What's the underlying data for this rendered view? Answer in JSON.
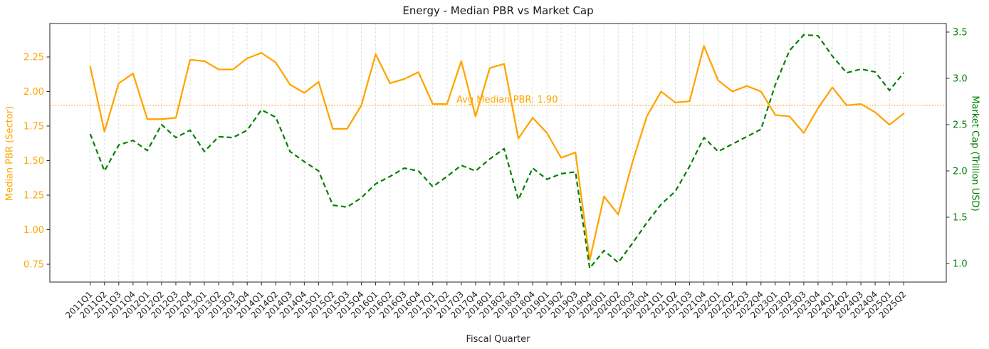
{
  "chart": {
    "title": "Energy - Median PBR vs Market Cap",
    "xlabel": "Fiscal Quarter",
    "ylabel_left": "Median PBR (Sector)",
    "ylabel_right": "Market Cap (Trillion USD)",
    "colors": {
      "pbr_line": "#FFA500",
      "mcap_line": "#008000",
      "avg_line": "#FFA500",
      "grid": "#dcdcdc",
      "spine": "#262626",
      "x_tick_text": "#262626"
    }
  },
  "chart_data": {
    "type": "line",
    "title": "Energy - Median PBR vs Market Cap",
    "xlabel": "Fiscal Quarter",
    "ylabel_left": "Median PBR (Sector)",
    "ylabel_right": "Market Cap (Trillion USD)",
    "legend": "none",
    "grid": "vertical-dashed",
    "categories": [
      "2011Q1",
      "2011Q2",
      "2011Q3",
      "2011Q4",
      "2012Q1",
      "2012Q2",
      "2012Q3",
      "2012Q4",
      "2013Q1",
      "2013Q2",
      "2013Q3",
      "2013Q4",
      "2014Q1",
      "2014Q2",
      "2014Q3",
      "2014Q4",
      "2015Q1",
      "2015Q2",
      "2015Q3",
      "2015Q4",
      "2016Q1",
      "2016Q2",
      "2016Q3",
      "2016Q4",
      "2017Q1",
      "2017Q2",
      "2017Q3",
      "2017Q4",
      "2018Q1",
      "2018Q2",
      "2018Q3",
      "2018Q4",
      "2019Q1",
      "2019Q2",
      "2019Q3",
      "2019Q4",
      "2020Q1",
      "2020Q2",
      "2020Q3",
      "2020Q4",
      "2021Q1",
      "2021Q2",
      "2021Q3",
      "2021Q4",
      "2022Q1",
      "2022Q2",
      "2022Q3",
      "2022Q4",
      "2023Q1",
      "2023Q2",
      "2023Q3",
      "2023Q4",
      "2024Q1",
      "2024Q2",
      "2024Q3",
      "2024Q4",
      "2025Q1",
      "2025Q2"
    ],
    "series": [
      {
        "name": "Median PBR (Sector)",
        "axis": "left",
        "style": "solid",
        "color": "#FFA500",
        "values": [
          2.18,
          1.71,
          2.06,
          2.13,
          1.8,
          1.8,
          1.81,
          2.23,
          2.22,
          2.16,
          2.16,
          2.24,
          2.28,
          2.21,
          2.05,
          1.99,
          2.07,
          1.73,
          1.73,
          1.9,
          2.27,
          2.06,
          2.09,
          2.14,
          1.91,
          1.91,
          2.22,
          1.82,
          2.17,
          2.2,
          1.66,
          1.81,
          1.7,
          1.52,
          1.56,
          0.78,
          1.24,
          1.11,
          1.49,
          1.82,
          2.0,
          1.92,
          1.93,
          2.33,
          2.08,
          2.0,
          2.04,
          2.0,
          1.83,
          1.82,
          1.7,
          1.88,
          2.03,
          1.9,
          1.91,
          1.85,
          1.76,
          1.84
        ]
      },
      {
        "name": "Market Cap (Trillion USD)",
        "axis": "right",
        "style": "dashed",
        "color": "#008000",
        "values": [
          2.4,
          2.0,
          2.28,
          2.33,
          2.22,
          2.5,
          2.36,
          2.44,
          2.21,
          2.37,
          2.36,
          2.44,
          2.66,
          2.58,
          2.21,
          2.1,
          2.0,
          1.63,
          1.61,
          1.71,
          1.86,
          1.94,
          2.03,
          2.0,
          1.83,
          1.94,
          2.06,
          2.0,
          2.13,
          2.24,
          1.69,
          2.03,
          1.91,
          1.97,
          1.99,
          0.95,
          1.14,
          1.01,
          1.22,
          1.44,
          1.64,
          1.78,
          2.05,
          2.36,
          2.21,
          2.29,
          2.37,
          2.45,
          2.93,
          3.3,
          3.47,
          3.46,
          3.24,
          3.06,
          3.1,
          3.07,
          2.87,
          3.06
        ]
      }
    ],
    "left_axis": {
      "ticks": [
        "0.75",
        "1.00",
        "1.25",
        "1.50",
        "1.75",
        "2.00",
        "2.25"
      ],
      "ylim": [
        0.62,
        2.49
      ]
    },
    "right_axis": {
      "ticks": [
        "1.0",
        "1.5",
        "2.0",
        "2.5",
        "3.0",
        "3.5"
      ],
      "ylim": [
        0.8,
        3.59
      ]
    },
    "avg_line": {
      "value": 1.9,
      "label": "Avg Median PBR: 1.90"
    }
  }
}
